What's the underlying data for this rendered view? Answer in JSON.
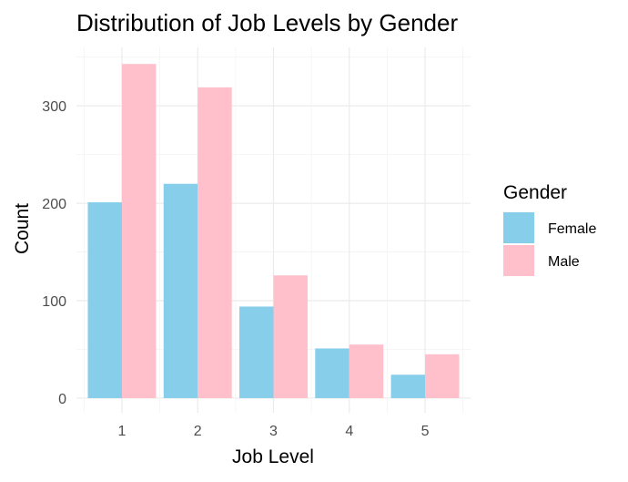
{
  "chart_data": {
    "type": "bar",
    "title": "Distribution of Job Levels by Gender",
    "xlabel": "Job Level",
    "ylabel": "Count",
    "categories": [
      "1",
      "2",
      "3",
      "4",
      "5"
    ],
    "series": [
      {
        "name": "Female",
        "color": "#87CEEB",
        "values": [
          201,
          220,
          94,
          51,
          24
        ]
      },
      {
        "name": "Male",
        "color": "#FFC0CB",
        "values": [
          343,
          319,
          126,
          55,
          45
        ]
      }
    ],
    "ylim": [
      -15,
      360
    ],
    "yticks": [
      0,
      100,
      200,
      300
    ],
    "legend_title": "Gender",
    "legend_position": "right",
    "grid": true
  }
}
